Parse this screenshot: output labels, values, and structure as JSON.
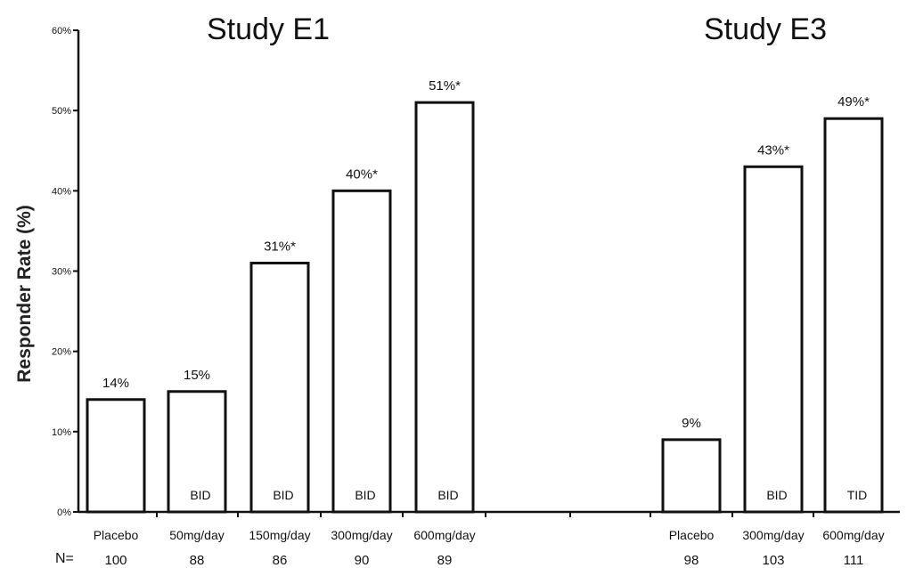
{
  "chart_data": {
    "type": "bar",
    "ylabel": "Responder Rate (%)",
    "ylim": [
      0,
      60
    ],
    "yticks": [
      0,
      10,
      20,
      30,
      40,
      50,
      60
    ],
    "ytick_labels": [
      "0%",
      "10%",
      "20%",
      "30%",
      "40%",
      "50%",
      "60%"
    ],
    "n_prefix": "N=",
    "groups": [
      {
        "title": "Study E1",
        "bars": [
          {
            "category": "Placebo",
            "value": 14,
            "label": "14%",
            "dosing": "",
            "n": "100"
          },
          {
            "category": "50mg/day",
            "value": 15,
            "label": "15%",
            "dosing": "BID",
            "n": "88"
          },
          {
            "category": "150mg/day",
            "value": 31,
            "label": "31%*",
            "dosing": "BID",
            "n": "86"
          },
          {
            "category": "300mg/day",
            "value": 40,
            "label": "40%*",
            "dosing": "BID",
            "n": "90"
          },
          {
            "category": "600mg/day",
            "value": 51,
            "label": "51%*",
            "dosing": "BID",
            "n": "89"
          }
        ]
      },
      {
        "title": "Study E3",
        "bars": [
          {
            "category": "Placebo",
            "value": 9,
            "label": "9%",
            "dosing": "",
            "n": "98"
          },
          {
            "category": "300mg/day",
            "value": 43,
            "label": "43%*",
            "dosing": "BID",
            "n": "103"
          },
          {
            "category": "600mg/day",
            "value": 49,
            "label": "49%*",
            "dosing": "TID",
            "n": "111"
          }
        ]
      }
    ],
    "grid": false,
    "colors": {
      "bar_fill": "#ffffff",
      "bar_stroke": "#111111",
      "text": "#111111"
    }
  }
}
